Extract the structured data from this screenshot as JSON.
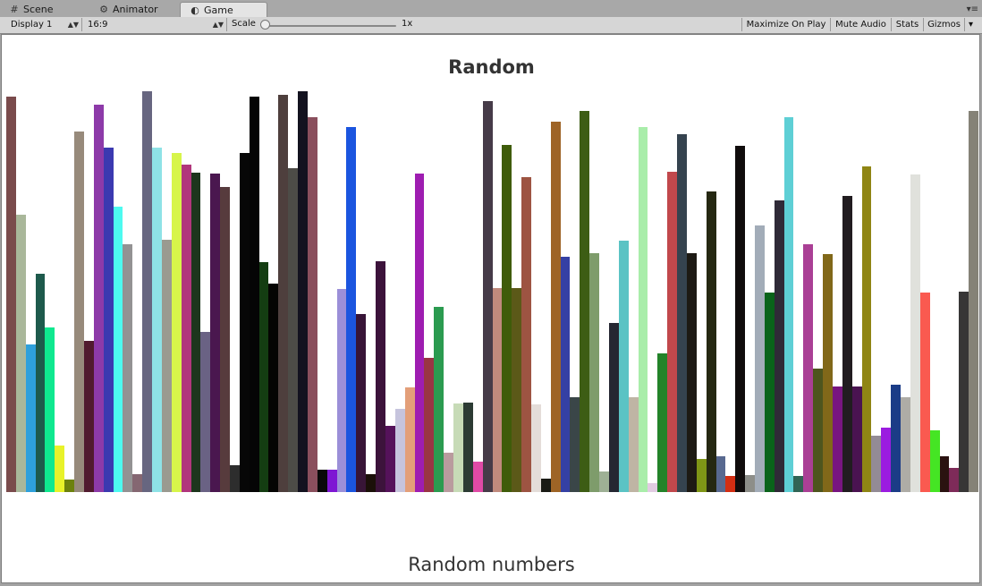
{
  "tabs": [
    {
      "label": "Scene",
      "icon": "grid-icon",
      "active": false
    },
    {
      "label": "Animator",
      "icon": "animator-icon",
      "active": false
    },
    {
      "label": "Game",
      "icon": "pacman-icon",
      "active": true
    }
  ],
  "toolbar": {
    "display": "Display 1",
    "aspect": "16:9",
    "scale_label": "Scale",
    "scale_value": "1x",
    "scale_level": 0.0,
    "maximize": "Maximize On Play",
    "mute": "Mute Audio",
    "stats": "Stats",
    "gizmos": "Gizmos"
  },
  "chart_data": {
    "type": "bar",
    "title": "Random",
    "xlabel": "Random numbers",
    "values": [
      0.981,
      0.688,
      0.365,
      0.541,
      0.407,
      0.116,
      0.03,
      0.894,
      0.374,
      0.96,
      0.853,
      0.707,
      0.615,
      0.044,
      0.993,
      0.853,
      0.626,
      0.841,
      0.811,
      0.791,
      0.397,
      0.789,
      0.755,
      0.066,
      0.841,
      0.981,
      0.57,
      0.516,
      0.984,
      0.802,
      0.993,
      0.929,
      0.056,
      0.055,
      0.504,
      0.905,
      0.441,
      0.044,
      0.571,
      0.165,
      0.207,
      0.259,
      0.79,
      0.332,
      0.46,
      0.098,
      0.22,
      0.221,
      0.075,
      0.969,
      0.506,
      0.86,
      0.505,
      0.781,
      0.218,
      0.033,
      0.917,
      0.583,
      0.235,
      0.944,
      0.593,
      0.051,
      0.419,
      0.623,
      0.235,
      0.905,
      0.022,
      0.343,
      0.793,
      0.887,
      0.591,
      0.083,
      0.744,
      0.089,
      0.04,
      0.858,
      0.042,
      0.66,
      0.494,
      0.722,
      0.928,
      0.041,
      0.615,
      0.306,
      0.589,
      0.262,
      0.733,
      0.262,
      0.808,
      0.139,
      0.159,
      0.265,
      0.235,
      0.787,
      0.494,
      0.152,
      0.089,
      0.059,
      0.496,
      0.945
    ],
    "colors": [
      "#7a4b4c",
      "#a9b79a",
      "#2ea0db",
      "#1e5a4c",
      "#0fe88f",
      "#e8f22a",
      "#6c810d",
      "#978a7b",
      "#501a2e",
      "#8d3aa9",
      "#3b39b0",
      "#4dfaf0",
      "#939293",
      "#856772",
      "#676680",
      "#8ee2e6",
      "#9a9a90",
      "#d7f54a",
      "#b1367c",
      "#1d361d",
      "#6a6284",
      "#4a174f",
      "#573b3d",
      "#2d2d2d",
      "#070707",
      "#050505",
      "#143d12",
      "#050503",
      "#4e3f3d",
      "#4d4c47",
      "#13121f",
      "#8a4f5d",
      "#090909",
      "#7e17d3",
      "#9b8fd8",
      "#1b55df",
      "#381537",
      "#1b1009",
      "#3c133b",
      "#55125a",
      "#c6c4dd",
      "#e39f79",
      "#9e1db1",
      "#993544",
      "#2b9b50",
      "#b99b9e",
      "#c7dbb7",
      "#2c3b34",
      "#e04aa6",
      "#463b48",
      "#c08a7d",
      "#3f5c0a",
      "#5b5918",
      "#9d5442",
      "#e4ddd9",
      "#1a1b15",
      "#9e6426",
      "#3540a4",
      "#3a4648",
      "#3d5d14",
      "#7e9c6b",
      "#9eb095",
      "#252732",
      "#5bc3c4",
      "#bfb5a4",
      "#a9edaa",
      "#e1cbe2",
      "#238329",
      "#c1484c",
      "#35434f",
      "#1d1a14",
      "#7f9616",
      "#252812",
      "#586990",
      "#d32e13",
      "#100c0c",
      "#8d8e89",
      "#a2acb8",
      "#09631a",
      "#2f2a37",
      "#5ecfd5",
      "#316454",
      "#aa3f95",
      "#4e551e",
      "#816819",
      "#781580",
      "#211c20",
      "#4a1351",
      "#8f8514",
      "#938b95",
      "#9b1ce0",
      "#1b3c87",
      "#aeaca6",
      "#e0e1dc",
      "#fa5a50",
      "#45e524",
      "#2a1210",
      "#7e2b59",
      "#373636",
      "#858277"
    ]
  }
}
